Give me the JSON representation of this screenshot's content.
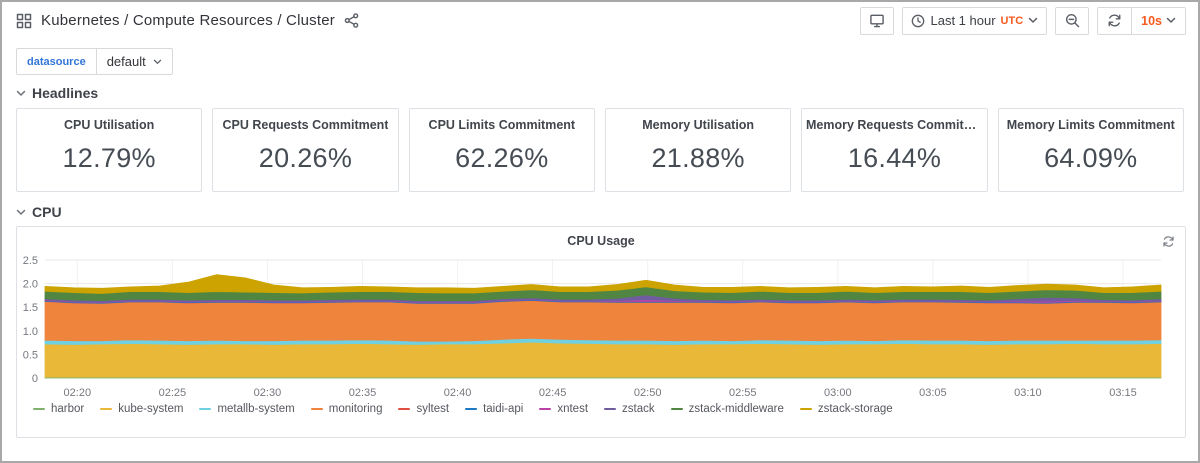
{
  "topnav": {
    "title": "Kubernetes / Compute Resources / Cluster"
  },
  "toolbar": {
    "time_range": "Last 1 hour",
    "timezone": "UTC",
    "refresh_interval": "10s"
  },
  "variables": [
    {
      "label": "datasource",
      "value": "default"
    }
  ],
  "sections": {
    "headlines": "Headlines",
    "cpu": "CPU"
  },
  "stats": {
    "panels": [
      {
        "title": "CPU Utilisation",
        "value": "12.79%"
      },
      {
        "title": "CPU Requests Commitment",
        "value": "20.26%"
      },
      {
        "title": "CPU Limits Commitment",
        "value": "62.26%"
      },
      {
        "title": "Memory Utilisation",
        "value": "21.88%"
      },
      {
        "title": "Memory Requests Commitm...",
        "value": "16.44%"
      },
      {
        "title": "Memory Limits Commitment",
        "value": "64.09%"
      }
    ]
  },
  "colors": {
    "accent_orange": "#f75a1e",
    "variable_label_blue": "#3274d9",
    "panel_border": "#dde1e6",
    "axis_text": "#75787e"
  },
  "icons": {
    "dashboard": "grid-4-squares",
    "share": "share-alt",
    "tv": "monitor",
    "clock": "clock-circle",
    "zoom_out": "magnifier-minus",
    "refresh": "circular-arrows",
    "caret": "chevron-down",
    "panel_spinner": "circular-arrows"
  },
  "chart_data": {
    "type": "area",
    "stacked": true,
    "title": "CPU Usage",
    "xlabel": "",
    "ylabel": "",
    "ylim": [
      0,
      2.5
    ],
    "y_ticks": [
      0,
      0.5,
      1.0,
      1.5,
      2.0,
      2.5
    ],
    "grid": true,
    "legend_position": "bottom",
    "x_start_min": 138.3,
    "x_end_min": 197,
    "x_ticks": [
      {
        "min": 140,
        "label": "02:20"
      },
      {
        "min": 145,
        "label": "02:25"
      },
      {
        "min": 150,
        "label": "02:30"
      },
      {
        "min": 155,
        "label": "02:35"
      },
      {
        "min": 160,
        "label": "02:40"
      },
      {
        "min": 165,
        "label": "02:45"
      },
      {
        "min": 170,
        "label": "02:50"
      },
      {
        "min": 175,
        "label": "02:55"
      },
      {
        "min": 180,
        "label": "03:00"
      },
      {
        "min": 185,
        "label": "03:05"
      },
      {
        "min": 190,
        "label": "03:10"
      },
      {
        "min": 195,
        "label": "03:15"
      }
    ],
    "series": [
      {
        "name": "harbor",
        "color": "#7EB26D",
        "values": [
          0.02,
          0.02,
          0.02,
          0.02,
          0.02,
          0.02,
          0.02,
          0.02,
          0.02,
          0.02,
          0.02,
          0.02,
          0.02,
          0.02,
          0.02,
          0.02,
          0.02,
          0.02,
          0.02,
          0.02,
          0.02,
          0.02,
          0.02,
          0.02,
          0.02,
          0.02,
          0.02,
          0.02,
          0.02,
          0.02,
          0.02,
          0.02,
          0.02,
          0.02,
          0.02,
          0.02,
          0.02,
          0.02,
          0.02,
          0.02
        ]
      },
      {
        "name": "kube-system",
        "color": "#EAB839",
        "values": [
          0.7,
          0.69,
          0.7,
          0.71,
          0.7,
          0.69,
          0.7,
          0.7,
          0.69,
          0.7,
          0.7,
          0.71,
          0.7,
          0.69,
          0.7,
          0.7,
          0.72,
          0.74,
          0.72,
          0.71,
          0.7,
          0.7,
          0.69,
          0.7,
          0.7,
          0.71,
          0.7,
          0.69,
          0.7,
          0.7,
          0.71,
          0.7,
          0.7,
          0.69,
          0.7,
          0.7,
          0.71,
          0.7,
          0.7,
          0.71
        ]
      },
      {
        "name": "metallb-system",
        "color": "#6ED0E0",
        "values": [
          0.08,
          0.08,
          0.07,
          0.08,
          0.08,
          0.08,
          0.08,
          0.07,
          0.08,
          0.08,
          0.08,
          0.08,
          0.08,
          0.07,
          0.06,
          0.07,
          0.08,
          0.08,
          0.08,
          0.08,
          0.08,
          0.08,
          0.08,
          0.08,
          0.07,
          0.08,
          0.08,
          0.08,
          0.08,
          0.07,
          0.08,
          0.08,
          0.08,
          0.08,
          0.08,
          0.08,
          0.07,
          0.08,
          0.08,
          0.08
        ]
      },
      {
        "name": "monitoring",
        "color": "#EF843C",
        "values": [
          0.82,
          0.8,
          0.79,
          0.8,
          0.81,
          0.8,
          0.8,
          0.81,
          0.8,
          0.79,
          0.8,
          0.8,
          0.81,
          0.8,
          0.8,
          0.79,
          0.8,
          0.8,
          0.79,
          0.8,
          0.8,
          0.8,
          0.81,
          0.8,
          0.8,
          0.8,
          0.79,
          0.8,
          0.81,
          0.8,
          0.8,
          0.81,
          0.8,
          0.8,
          0.79,
          0.78,
          0.8,
          0.8,
          0.79,
          0.8
        ]
      },
      {
        "name": "syltest",
        "color": "#E24D42",
        "values": [
          0.005,
          0.005,
          0.005,
          0.005,
          0.005,
          0.005,
          0.005,
          0.005,
          0.005,
          0.005,
          0.005,
          0.005,
          0.005,
          0.005,
          0.005,
          0.005,
          0.005,
          0.005,
          0.005,
          0.005,
          0.005,
          0.005,
          0.005,
          0.005,
          0.005,
          0.005,
          0.005,
          0.005,
          0.005,
          0.005,
          0.005,
          0.005,
          0.005,
          0.005,
          0.005,
          0.005,
          0.005,
          0.005,
          0.005,
          0.005
        ]
      },
      {
        "name": "taidi-api",
        "color": "#1F78C1",
        "values": [
          0.015,
          0.015,
          0.015,
          0.015,
          0.015,
          0.015,
          0.015,
          0.015,
          0.015,
          0.015,
          0.015,
          0.015,
          0.015,
          0.015,
          0.015,
          0.015,
          0.015,
          0.015,
          0.015,
          0.015,
          0.015,
          0.015,
          0.015,
          0.015,
          0.015,
          0.015,
          0.015,
          0.015,
          0.015,
          0.015,
          0.015,
          0.015,
          0.015,
          0.015,
          0.015,
          0.015,
          0.015,
          0.015,
          0.015,
          0.015
        ]
      },
      {
        "name": "xntest",
        "color": "#BA43A9",
        "values": [
          0.01,
          0.01,
          0.01,
          0.01,
          0.01,
          0.01,
          0.01,
          0.01,
          0.01,
          0.01,
          0.01,
          0.01,
          0.01,
          0.01,
          0.01,
          0.01,
          0.01,
          0.01,
          0.01,
          0.01,
          0.02,
          0.04,
          0.02,
          0.01,
          0.01,
          0.01,
          0.01,
          0.01,
          0.01,
          0.01,
          0.01,
          0.01,
          0.01,
          0.01,
          0.02,
          0.03,
          0.02,
          0.01,
          0.01,
          0.01
        ]
      },
      {
        "name": "zstack",
        "color": "#705DA0",
        "values": [
          0.03,
          0.03,
          0.03,
          0.03,
          0.03,
          0.03,
          0.03,
          0.03,
          0.03,
          0.03,
          0.03,
          0.03,
          0.03,
          0.03,
          0.03,
          0.03,
          0.03,
          0.03,
          0.03,
          0.03,
          0.05,
          0.1,
          0.05,
          0.03,
          0.03,
          0.03,
          0.03,
          0.03,
          0.03,
          0.03,
          0.03,
          0.03,
          0.03,
          0.03,
          0.05,
          0.08,
          0.06,
          0.03,
          0.03,
          0.04
        ]
      },
      {
        "name": "zstack-middleware",
        "color": "#508642",
        "values": [
          0.16,
          0.16,
          0.15,
          0.16,
          0.16,
          0.16,
          0.17,
          0.16,
          0.16,
          0.15,
          0.16,
          0.16,
          0.16,
          0.17,
          0.16,
          0.16,
          0.16,
          0.17,
          0.16,
          0.16,
          0.17,
          0.17,
          0.16,
          0.16,
          0.16,
          0.17,
          0.16,
          0.16,
          0.17,
          0.16,
          0.16,
          0.16,
          0.17,
          0.16,
          0.16,
          0.16,
          0.16,
          0.15,
          0.16,
          0.16
        ]
      },
      {
        "name": "zstack-storage",
        "color": "#CCA300",
        "values": [
          0.1,
          0.1,
          0.11,
          0.1,
          0.12,
          0.22,
          0.36,
          0.3,
          0.16,
          0.11,
          0.1,
          0.11,
          0.1,
          0.1,
          0.11,
          0.1,
          0.1,
          0.11,
          0.1,
          0.1,
          0.12,
          0.14,
          0.12,
          0.1,
          0.11,
          0.1,
          0.1,
          0.11,
          0.1,
          0.1,
          0.11,
          0.1,
          0.12,
          0.11,
          0.12,
          0.12,
          0.11,
          0.1,
          0.12,
          0.13
        ]
      }
    ]
  }
}
